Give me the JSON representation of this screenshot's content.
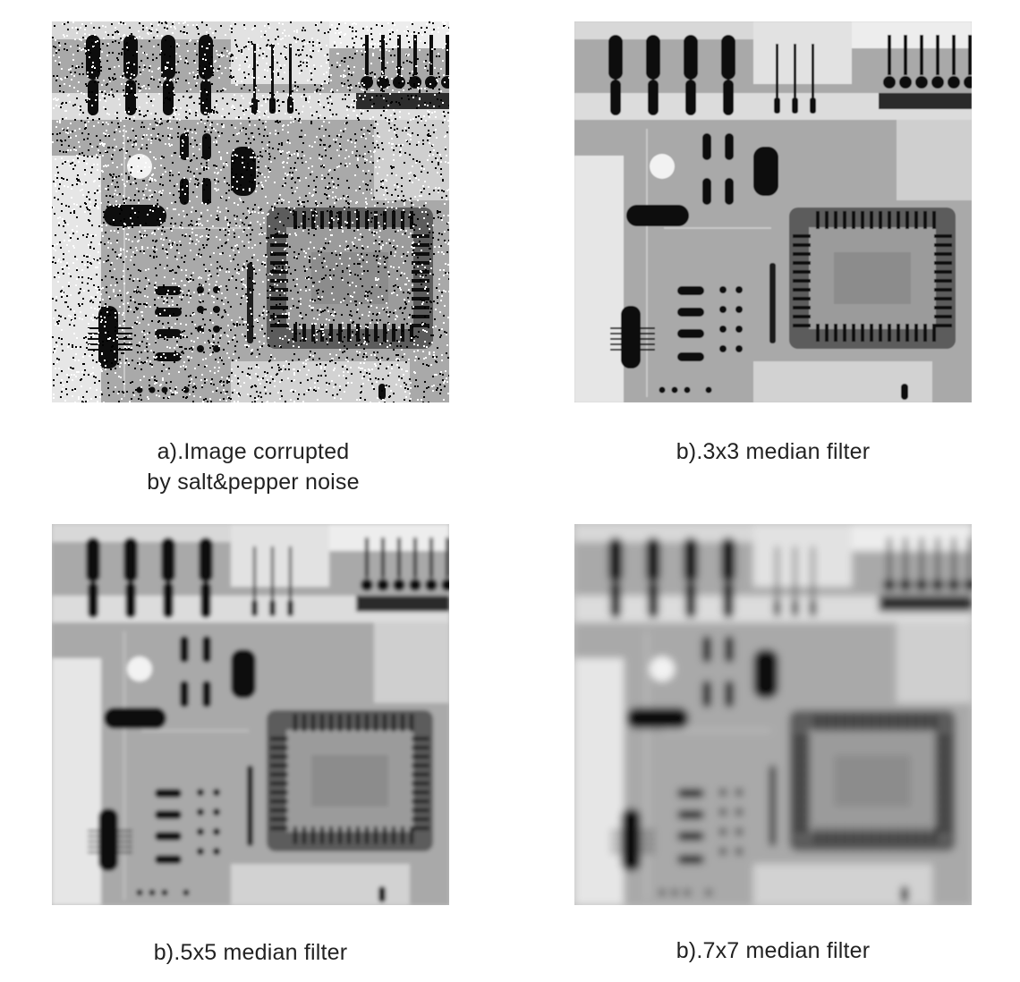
{
  "panels": [
    {
      "id": "a",
      "filter": "noisy",
      "caption": [
        "a).Image corrupted",
        "by salt&pepper noise"
      ],
      "blur": 0,
      "noise": true
    },
    {
      "id": "b1",
      "filter": "3x3",
      "caption": [
        "b).3x3 median filter"
      ],
      "blur": 0.6,
      "noise": false
    },
    {
      "id": "b2",
      "filter": "5x5",
      "caption": [
        "b).5x5 median filter"
      ],
      "blur": 2.2,
      "noise": false
    },
    {
      "id": "b3",
      "filter": "7x7",
      "caption": [
        "b).7x7 median filter"
      ],
      "blur": 4.2,
      "noise": false
    }
  ],
  "colors": {
    "board": "#a9a9a9",
    "dark": "#0d0d0d",
    "light": "#f2f2f2",
    "chip": "#5c5c5c"
  }
}
